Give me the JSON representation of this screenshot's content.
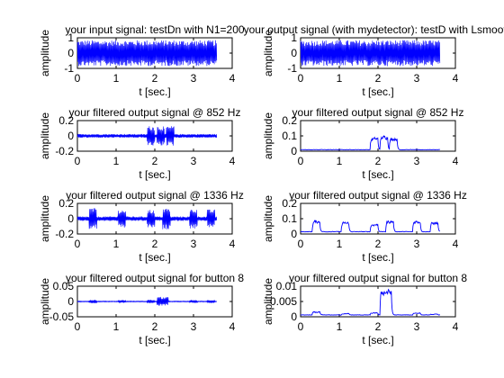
{
  "colors": {
    "signal": "#0000ff",
    "axes": "#000000",
    "background": "#ffffff"
  },
  "chart_data": [
    {
      "type": "line",
      "title": "your input signal: testDn with N1=200",
      "xlabel": "t [sec.]",
      "ylabel": "amplitude",
      "xlim": [
        0,
        4
      ],
      "ylim": [
        -1,
        1
      ],
      "xticks": [
        "0",
        "1",
        "2",
        "3",
        "4"
      ],
      "yticks": [
        "-1",
        "0",
        "1"
      ],
      "grid": false,
      "series": [
        {
          "kind": "noise",
          "t_end": 3.6,
          "envelope": [
            [
              0,
              0.85
            ],
            [
              3.6,
              0.85
            ]
          ]
        }
      ]
    },
    {
      "type": "line",
      "title": "your output signal (with mydetector): testD with Lsmooth",
      "xlabel": "t [sec.]",
      "ylabel": "amplitude",
      "xlim": [
        0,
        4
      ],
      "ylim": [
        -1,
        1
      ],
      "xticks": [
        "0",
        "1",
        "2",
        "3",
        "4"
      ],
      "yticks": [
        "-1",
        "0",
        "1"
      ],
      "grid": false,
      "series": [
        {
          "kind": "noise",
          "t_end": 3.6,
          "envelope": [
            [
              0,
              0.85
            ],
            [
              3.6,
              0.85
            ]
          ]
        }
      ]
    },
    {
      "type": "line",
      "title": "your filtered output signal @ 852 Hz",
      "xlabel": "t [sec.]",
      "ylabel": "amplitude",
      "xlim": [
        0,
        4
      ],
      "ylim": [
        -0.2,
        0.2
      ],
      "xticks": [
        "0",
        "1",
        "2",
        "3",
        "4"
      ],
      "yticks": [
        "-0.2",
        "0",
        "0.2"
      ],
      "grid": false,
      "series": [
        {
          "kind": "bursts",
          "t_end": 3.6,
          "base": 0.025,
          "bursts": [
            [
              1.8,
              2.0,
              0.13
            ],
            [
              2.05,
              2.25,
              0.13
            ],
            [
              2.3,
              2.5,
              0.13
            ]
          ]
        }
      ]
    },
    {
      "type": "line",
      "title": "your filtered output signal @ 852 Hz",
      "xlabel": "t [sec.]",
      "ylabel": "amplitude",
      "xlim": [
        0,
        4
      ],
      "ylim": [
        0,
        0.2
      ],
      "xticks": [
        "0",
        "1",
        "2",
        "3",
        "4"
      ],
      "yticks": [
        "0",
        "0.1",
        "0.2"
      ],
      "grid": false,
      "series": [
        {
          "kind": "envelope",
          "t_end": 3.6,
          "base": 0.01,
          "plateaus": [
            [
              1.8,
              2.0,
              0.08
            ],
            [
              2.05,
              2.25,
              0.09
            ],
            [
              2.3,
              2.5,
              0.08
            ]
          ]
        }
      ]
    },
    {
      "type": "line",
      "title": "your filtered output signal @ 1336 Hz",
      "xlabel": "t [sec.]",
      "ylabel": "amplitude",
      "xlim": [
        0,
        4
      ],
      "ylim": [
        -0.2,
        0.2
      ],
      "xticks": [
        "0",
        "1",
        "2",
        "3",
        "4"
      ],
      "yticks": [
        "-0.2",
        "0",
        "0.2"
      ],
      "grid": false,
      "series": [
        {
          "kind": "bursts",
          "t_end": 3.6,
          "base": 0.03,
          "bursts": [
            [
              0.3,
              0.5,
              0.14
            ],
            [
              1.05,
              1.25,
              0.12
            ],
            [
              1.8,
              2.0,
              0.12
            ],
            [
              2.2,
              2.4,
              0.14
            ],
            [
              2.9,
              3.1,
              0.13
            ],
            [
              3.35,
              3.55,
              0.12
            ]
          ]
        }
      ]
    },
    {
      "type": "line",
      "title": "your filtered output signal @ 1336 Hz",
      "xlabel": "t [sec.]",
      "ylabel": "amplitude",
      "xlim": [
        0,
        4
      ],
      "ylim": [
        0,
        0.2
      ],
      "xticks": [
        "0",
        "1",
        "2",
        "3",
        "4"
      ],
      "yticks": [
        "0",
        "0.1",
        "0.2"
      ],
      "grid": false,
      "series": [
        {
          "kind": "envelope",
          "t_end": 3.6,
          "base": 0.015,
          "plateaus": [
            [
              0.3,
              0.5,
              0.08
            ],
            [
              1.05,
              1.25,
              0.07
            ],
            [
              1.8,
              2.0,
              0.06
            ],
            [
              2.2,
              2.4,
              0.08
            ],
            [
              2.9,
              3.1,
              0.08
            ],
            [
              3.35,
              3.55,
              0.07
            ]
          ]
        }
      ]
    },
    {
      "type": "line",
      "title": "your filtered output signal for button 8",
      "xlabel": "t [sec.]",
      "ylabel": "amplitude",
      "xlim": [
        0,
        4
      ],
      "ylim": [
        -0.05,
        0.05
      ],
      "xticks": [
        "0",
        "1",
        "2",
        "3",
        "4"
      ],
      "yticks": [
        "-0.05",
        "0",
        "0.05"
      ],
      "grid": false,
      "series": [
        {
          "kind": "bursts",
          "t_end": 3.6,
          "base": 0.0015,
          "bursts": [
            [
              0.3,
              0.5,
              0.006
            ],
            [
              1.05,
              1.25,
              0.005
            ],
            [
              1.8,
              2.0,
              0.006
            ],
            [
              2.05,
              2.35,
              0.015
            ],
            [
              2.9,
              3.1,
              0.005
            ],
            [
              3.35,
              3.55,
              0.005
            ]
          ]
        }
      ]
    },
    {
      "type": "line",
      "title": "your filtered output signal for button 8",
      "xlabel": "t [sec.]",
      "ylabel": "amplitude",
      "xlim": [
        0,
        4
      ],
      "ylim": [
        0,
        0.01
      ],
      "xticks": [
        "0",
        "1",
        "2",
        "3",
        "4"
      ],
      "yticks": [
        "0",
        "0.005",
        "0.01"
      ],
      "grid": false,
      "series": [
        {
          "kind": "envelope",
          "t_end": 3.6,
          "base": 0.0006,
          "plateaus": [
            [
              0.3,
              0.5,
              0.0015
            ],
            [
              1.05,
              1.25,
              0.001
            ],
            [
              1.8,
              2.0,
              0.0012
            ],
            [
              2.05,
              2.35,
              0.008
            ],
            [
              2.9,
              3.1,
              0.0012
            ],
            [
              3.35,
              3.55,
              0.0008
            ]
          ]
        }
      ]
    }
  ]
}
